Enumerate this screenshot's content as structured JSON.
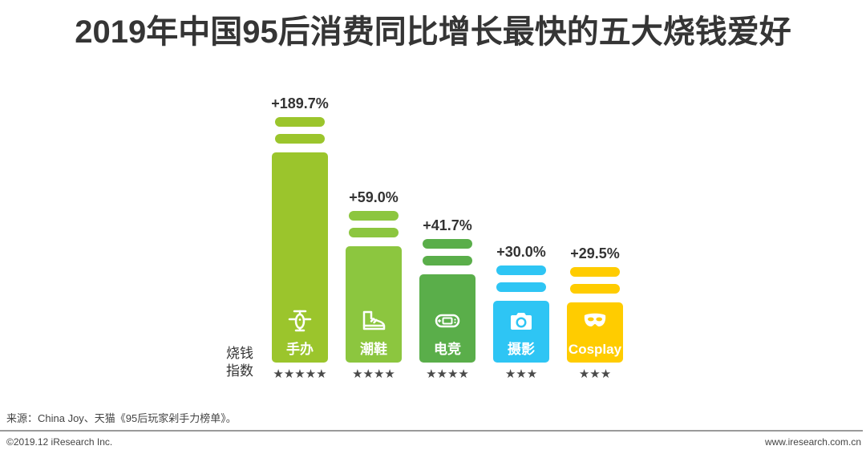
{
  "chart_data": {
    "type": "bar",
    "title": "2019年中国95后消费同比增长最快的五大烧钱爱好",
    "categories": [
      "手办",
      "潮鞋",
      "电竞",
      "摄影",
      "Cosplay"
    ],
    "values": [
      189.7,
      59.0,
      41.7,
      30.0,
      29.5
    ],
    "value_labels": [
      "+189.7%",
      "+59.0%",
      "+41.7%",
      "+30.0%",
      "+29.5%"
    ],
    "rating_label": [
      "烧钱",
      "指数"
    ],
    "ratings": [
      5,
      4,
      4,
      3,
      3
    ],
    "colors": [
      "#9BC52C",
      "#8CC63F",
      "#5AAE4A",
      "#2EC5F4",
      "#FFCC00"
    ],
    "icons": [
      "figurine-icon",
      "sneaker-icon",
      "game-console-icon",
      "camera-icon",
      "mask-icon"
    ],
    "grid": false
  },
  "source": "来源：China Joy、天猫《95后玩家剁手力榜单》。",
  "footer": {
    "copyright": "©2019.12 iResearch Inc.",
    "website": "www.iresearch.com.cn"
  }
}
